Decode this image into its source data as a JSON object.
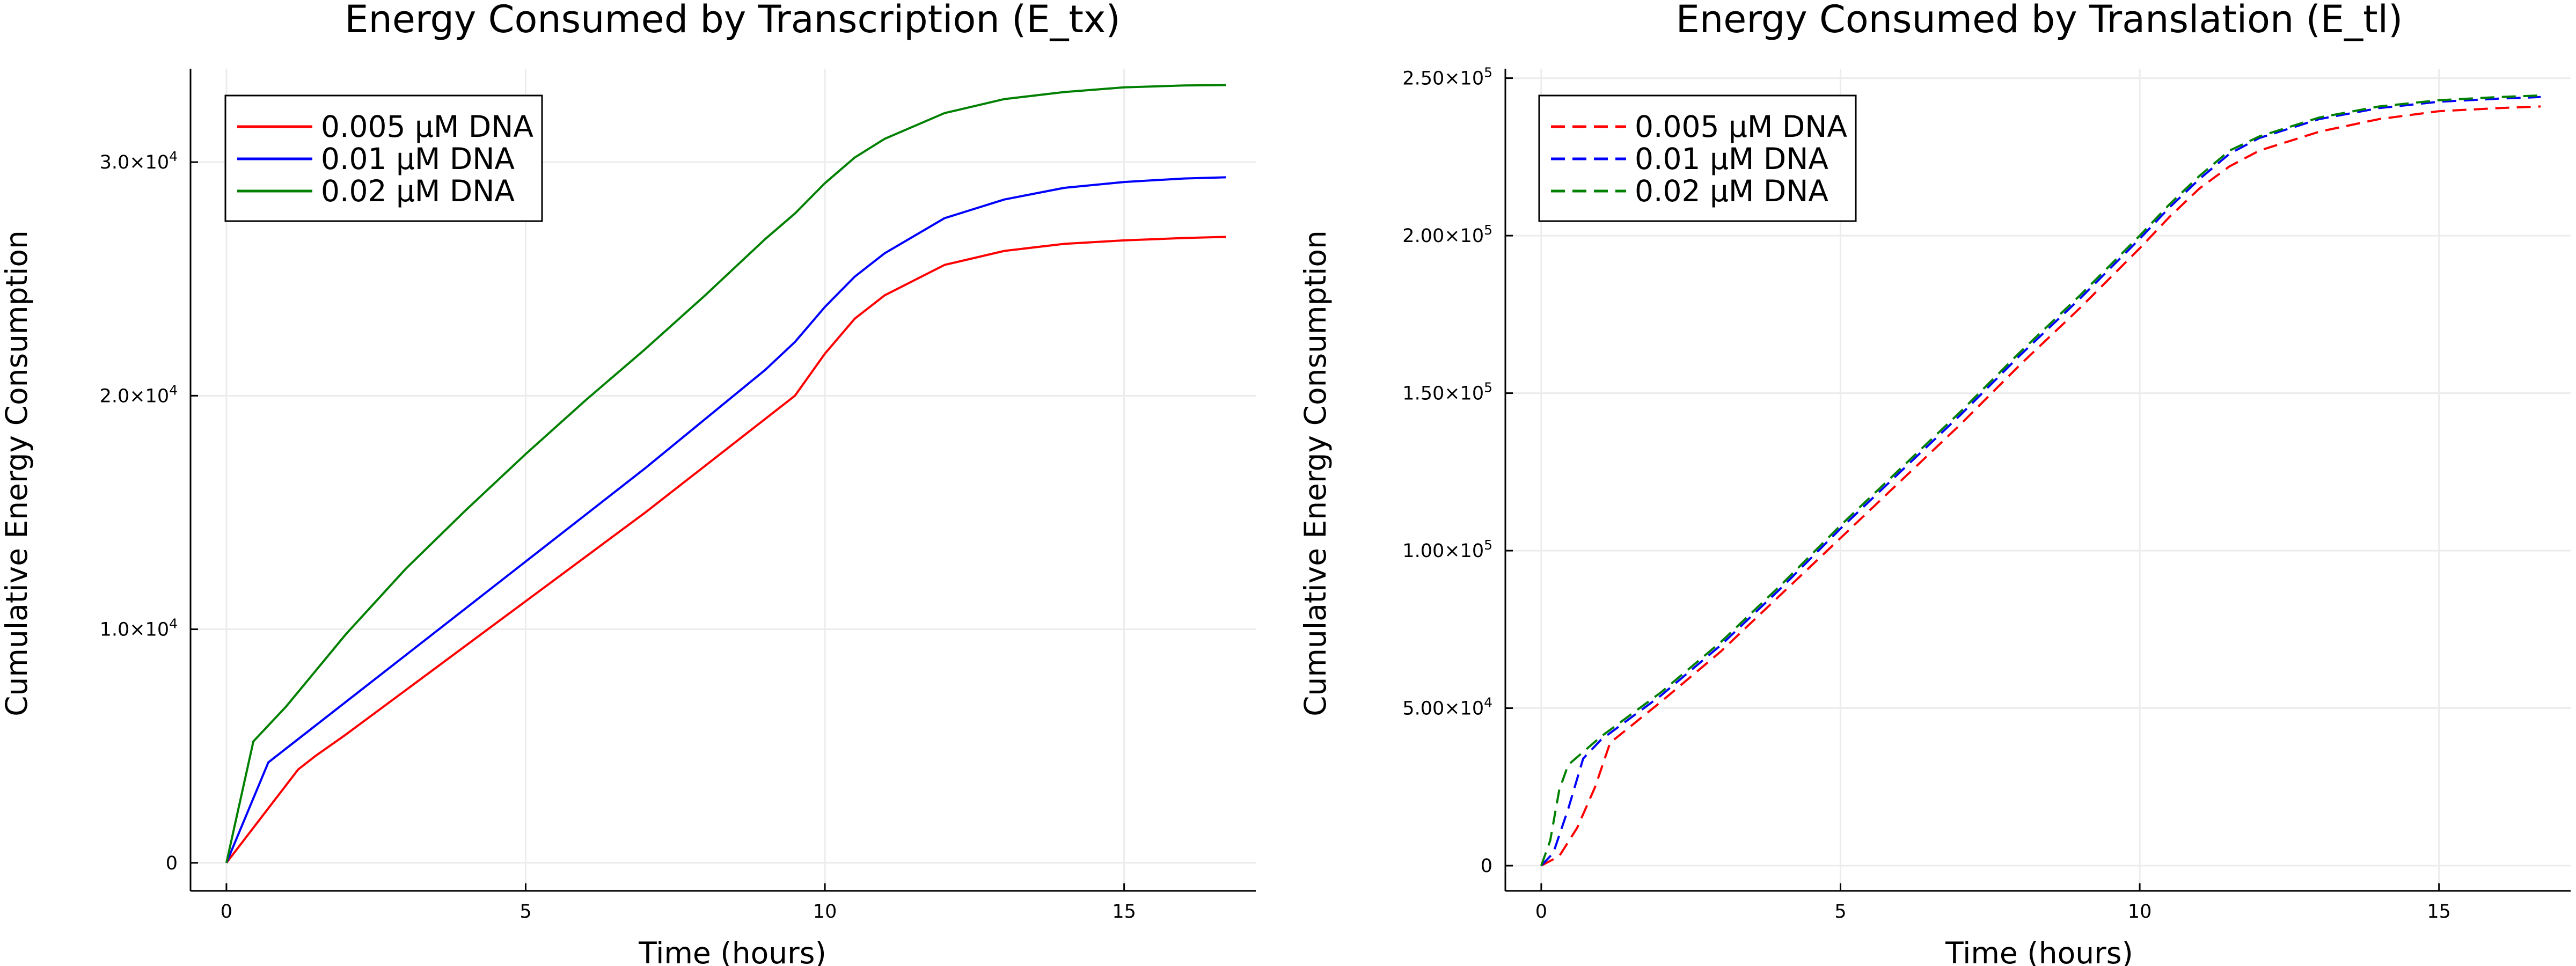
{
  "chart_data": [
    {
      "type": "line",
      "title": "Energy Consumed by Transcription (E_tx)",
      "xlabel": "Time (hours)",
      "ylabel": "Cumulative Energy Consumption",
      "xlim": [
        -0.6,
        17.2
      ],
      "ylim": [
        -1200,
        34000
      ],
      "xticks": [
        0,
        5,
        10,
        15
      ],
      "yticks": [
        0,
        10000,
        20000,
        30000
      ],
      "ytick_labels": [
        {
          "mantissa": "0",
          "exp": ""
        },
        {
          "mantissa": "1.0×10",
          "exp": "4"
        },
        {
          "mantissa": "2.0×10",
          "exp": "4"
        },
        {
          "mantissa": "3.0×10",
          "exp": "4"
        }
      ],
      "grid": true,
      "legend_position": "top-left",
      "line_style": "solid",
      "series": [
        {
          "name": "0.005 μM DNA",
          "color": "#ff0000",
          "x": [
            0,
            1.2,
            1.5,
            2,
            3,
            4,
            5,
            6,
            7,
            8,
            9,
            9.5,
            10,
            10.5,
            11,
            12,
            13,
            14,
            15,
            16,
            16.7
          ],
          "y": [
            0,
            4000,
            4600,
            5500,
            7400,
            9300,
            11200,
            13100,
            15000,
            17000,
            19000,
            20000,
            21800,
            23300,
            24300,
            25600,
            26200,
            26500,
            26650,
            26750,
            26800
          ]
        },
        {
          "name": "0.01 μM DNA",
          "color": "#0000ff",
          "x": [
            0,
            0.7,
            1,
            2,
            3,
            4,
            5,
            6,
            7,
            8,
            9,
            9.5,
            10,
            10.5,
            11,
            12,
            13,
            14,
            15,
            16,
            16.7
          ],
          "y": [
            0,
            4300,
            4900,
            6900,
            8900,
            10900,
            12900,
            14900,
            16900,
            19000,
            21100,
            22300,
            23800,
            25100,
            26100,
            27600,
            28400,
            28900,
            29150,
            29300,
            29350
          ]
        },
        {
          "name": "0.02 μM DNA",
          "color": "#008000",
          "x": [
            0,
            0.45,
            1,
            2,
            3,
            4,
            5,
            6,
            7,
            8,
            9,
            9.5,
            10,
            10.5,
            11,
            12,
            13,
            14,
            15,
            16,
            16.7
          ],
          "y": [
            0,
            5200,
            6700,
            9800,
            12600,
            15100,
            17500,
            19800,
            22000,
            24300,
            26700,
            27800,
            29100,
            30200,
            31000,
            32100,
            32700,
            33000,
            33200,
            33280,
            33300
          ]
        }
      ]
    },
    {
      "type": "line",
      "title": "Energy Consumed by Translation (E_tl)",
      "xlabel": "Time (hours)",
      "ylabel": "Cumulative Energy Consumption",
      "xlim": [
        -0.6,
        17.2
      ],
      "ylim": [
        -8000,
        253000
      ],
      "xticks": [
        0,
        5,
        10,
        15
      ],
      "yticks": [
        0,
        50000,
        100000,
        150000,
        200000,
        250000
      ],
      "ytick_labels": [
        {
          "mantissa": "0",
          "exp": ""
        },
        {
          "mantissa": "5.00×10",
          "exp": "4"
        },
        {
          "mantissa": "1.00×10",
          "exp": "5"
        },
        {
          "mantissa": "1.50×10",
          "exp": "5"
        },
        {
          "mantissa": "2.00×10",
          "exp": "5"
        },
        {
          "mantissa": "2.50×10",
          "exp": "5"
        }
      ],
      "grid": true,
      "legend_position": "top-left",
      "line_style": "dashed",
      "series": [
        {
          "name": "0.005 μM DNA",
          "color": "#ff0000",
          "x": [
            0,
            0.3,
            0.6,
            0.9,
            1.15,
            2,
            3,
            4,
            5,
            6,
            7,
            8,
            9,
            10,
            10.5,
            11,
            11.5,
            12,
            13,
            14,
            15,
            16,
            16.7
          ],
          "y": [
            0,
            3000,
            12000,
            25000,
            39000,
            52000,
            68000,
            86000,
            104000,
            122000,
            140000,
            159000,
            177000,
            196000,
            206000,
            215000,
            222000,
            227000,
            233000,
            237000,
            239500,
            240500,
            241000
          ]
        },
        {
          "name": "0.01 μM DNA",
          "color": "#0000ff",
          "x": [
            0,
            0.2,
            0.45,
            0.7,
            1,
            2,
            3,
            4,
            5,
            6,
            7,
            8,
            9,
            10,
            10.5,
            11,
            11.5,
            12,
            13,
            14,
            15,
            16,
            16.7
          ],
          "y": [
            0,
            4000,
            18000,
            34000,
            40000,
            54000,
            70000,
            88000,
            107000,
            125000,
            143000,
            162000,
            180000,
            199000,
            209000,
            218000,
            226000,
            231000,
            237000,
            240500,
            242500,
            243500,
            244000
          ]
        },
        {
          "name": "0.02 μM DNA",
          "color": "#008000",
          "x": [
            0,
            0.15,
            0.3,
            0.45,
            1,
            2,
            3,
            4,
            5,
            6,
            7,
            8,
            9,
            10,
            10.5,
            11,
            11.5,
            12,
            13,
            14,
            15,
            16,
            16.7
          ],
          "y": [
            0,
            8000,
            24000,
            32000,
            41000,
            55000,
            71000,
            89000,
            108000,
            126000,
            144000,
            163000,
            181000,
            200000,
            210000,
            219000,
            227000,
            231500,
            237500,
            241000,
            243000,
            244000,
            244500
          ]
        }
      ]
    }
  ]
}
